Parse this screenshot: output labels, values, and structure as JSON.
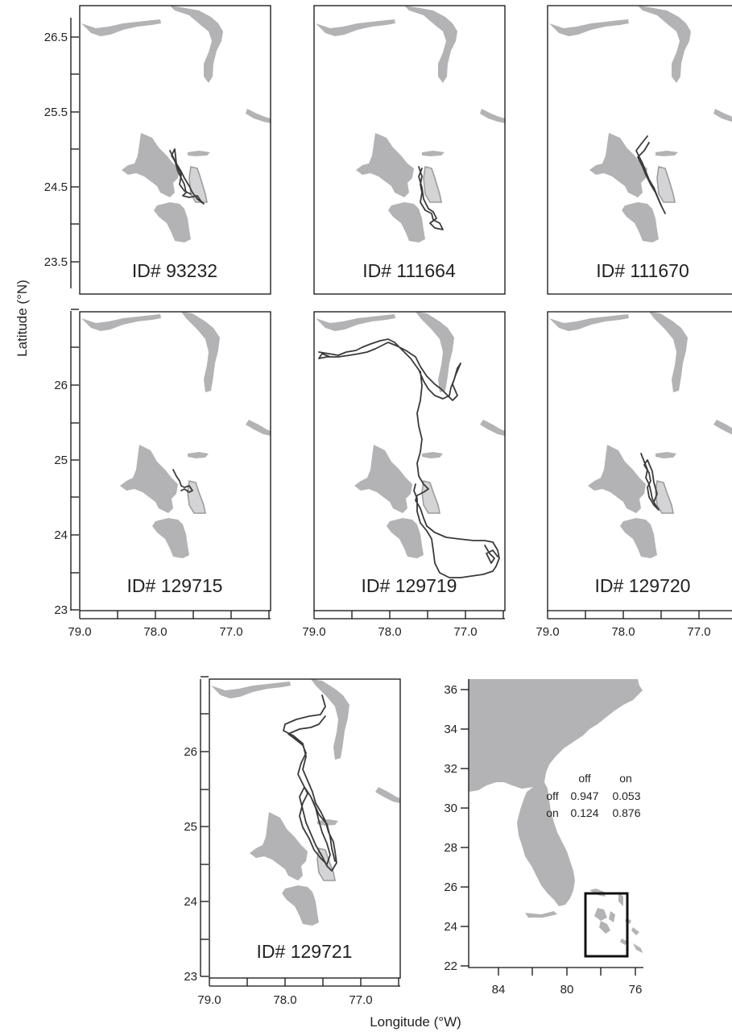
{
  "axis_titles": {
    "latitude": "Latitude (°N)",
    "longitude": "Longitude (°W)"
  },
  "colors": {
    "land": "#b3b3b5",
    "protected_area": "#d4d4d6",
    "track": "#3a3a3a"
  },
  "panels": [
    {
      "id": "ID# 93232"
    },
    {
      "id": "ID# 111664"
    },
    {
      "id": "ID# 111670"
    },
    {
      "id": "ID# 129715"
    },
    {
      "id": "ID# 129719"
    },
    {
      "id": "ID# 129720"
    },
    {
      "id": "ID# 129721"
    }
  ],
  "row1_lat_ticks": [
    "26.5",
    "25.5",
    "24.5",
    "23.5"
  ],
  "row2_lat_ticks": [
    "26",
    "25",
    "24",
    "23"
  ],
  "panel7_lat_ticks": [
    "26",
    "25",
    "24",
    "23"
  ],
  "lon_ticks": [
    "79.0",
    "78.0",
    "77.0"
  ],
  "inset": {
    "lat_ticks": [
      "36",
      "34",
      "32",
      "30",
      "28",
      "26",
      "24",
      "22"
    ],
    "lon_ticks": [
      "84",
      "80",
      "76"
    ],
    "matrix": {
      "col_headers": [
        "off",
        "on"
      ],
      "rows": [
        {
          "label": "off",
          "values": [
            "0.947",
            "0.053"
          ]
        },
        {
          "label": "on",
          "values": [
            "0.124",
            "0.876"
          ]
        }
      ]
    }
  },
  "chart_data": {
    "type": "map",
    "panels": [
      "ID# 93232",
      "ID# 111664",
      "ID# 111670",
      "ID# 129715",
      "ID# 129719",
      "ID# 129720",
      "ID# 129721"
    ],
    "lon_range_W": [
      79.0,
      76.5
    ],
    "transition_matrix": {
      "states": [
        "off",
        "on"
      ],
      "values": [
        [
          0.947,
          0.053
        ],
        [
          0.124,
          0.876
        ]
      ]
    }
  }
}
